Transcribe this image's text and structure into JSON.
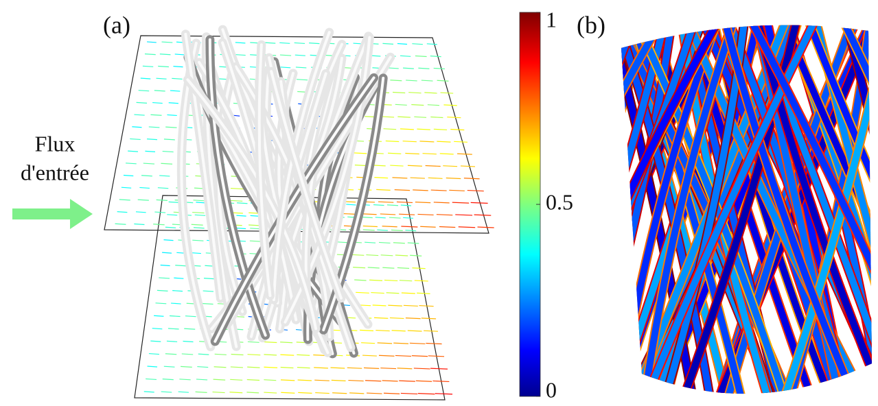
{
  "panels": [
    {
      "label": "(a)"
    },
    {
      "label": "(b)"
    }
  ],
  "inflow_label": [
    "Flux",
    "d'entrée"
  ],
  "colorbar": {
    "range": [
      0,
      1
    ],
    "ticks": [
      0,
      0.5,
      1
    ]
  }
}
